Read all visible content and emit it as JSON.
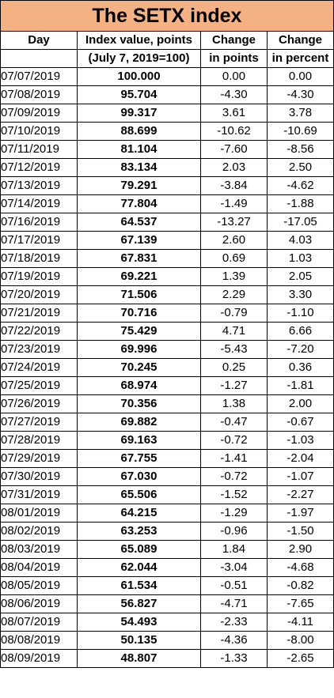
{
  "title": "The SETX index",
  "headers": {
    "day": "Day",
    "value_line1": "Index value, points",
    "value_line2": "(July 7, 2019=100)",
    "points_line1": "Change",
    "points_line2": "in points",
    "percent_line1": "Change",
    "percent_line2": "in percent"
  },
  "rows": [
    {
      "day": "07/07/2019",
      "value": "100.000",
      "change_points": "0.00",
      "change_percent": "0.00"
    },
    {
      "day": "07/08/2019",
      "value": "95.704",
      "change_points": "-4.30",
      "change_percent": "-4.30"
    },
    {
      "day": "07/09/2019",
      "value": "99.317",
      "change_points": "3.61",
      "change_percent": "3.78"
    },
    {
      "day": "07/10/2019",
      "value": "88.699",
      "change_points": "-10.62",
      "change_percent": "-10.69"
    },
    {
      "day": "07/11/2019",
      "value": "81.104",
      "change_points": "-7.60",
      "change_percent": "-8.56"
    },
    {
      "day": "07/12/2019",
      "value": "83.134",
      "change_points": "2.03",
      "change_percent": "2.50"
    },
    {
      "day": "07/13/2019",
      "value": "79.291",
      "change_points": "-3.84",
      "change_percent": "-4.62"
    },
    {
      "day": "07/14/2019",
      "value": "77.804",
      "change_points": "-1.49",
      "change_percent": "-1.88"
    },
    {
      "day": "07/16/2019",
      "value": "64.537",
      "change_points": "-13.27",
      "change_percent": "-17.05"
    },
    {
      "day": "07/17/2019",
      "value": "67.139",
      "change_points": "2.60",
      "change_percent": "4.03"
    },
    {
      "day": "07/18/2019",
      "value": "67.831",
      "change_points": "0.69",
      "change_percent": "1.03"
    },
    {
      "day": "07/19/2019",
      "value": "69.221",
      "change_points": "1.39",
      "change_percent": "2.05"
    },
    {
      "day": "07/20/2019",
      "value": "71.506",
      "change_points": "2.29",
      "change_percent": "3.30"
    },
    {
      "day": "07/21/2019",
      "value": "70.716",
      "change_points": "-0.79",
      "change_percent": "-1.10"
    },
    {
      "day": "07/22/2019",
      "value": "75.429",
      "change_points": "4.71",
      "change_percent": "6.66"
    },
    {
      "day": "07/23/2019",
      "value": "69.996",
      "change_points": "-5.43",
      "change_percent": "-7.20"
    },
    {
      "day": "07/24/2019",
      "value": "70.245",
      "change_points": "0.25",
      "change_percent": "0.36"
    },
    {
      "day": "07/25/2019",
      "value": "68.974",
      "change_points": "-1.27",
      "change_percent": "-1.81"
    },
    {
      "day": "07/26/2019",
      "value": "70.356",
      "change_points": "1.38",
      "change_percent": "2.00"
    },
    {
      "day": "07/27/2019",
      "value": "69.882",
      "change_points": "-0.47",
      "change_percent": "-0.67"
    },
    {
      "day": "07/28/2019",
      "value": "69.163",
      "change_points": "-0.72",
      "change_percent": "-1.03"
    },
    {
      "day": "07/29/2019",
      "value": "67.755",
      "change_points": "-1.41",
      "change_percent": "-2.04"
    },
    {
      "day": "07/30/2019",
      "value": "67.030",
      "change_points": "-0.72",
      "change_percent": "-1.07"
    },
    {
      "day": "07/31/2019",
      "value": "65.506",
      "change_points": "-1.52",
      "change_percent": "-2.27"
    },
    {
      "day": "08/01/2019",
      "value": "64.215",
      "change_points": "-1.29",
      "change_percent": "-1.97"
    },
    {
      "day": "08/02/2019",
      "value": "63.253",
      "change_points": "-0.96",
      "change_percent": "-1.50"
    },
    {
      "day": "08/03/2019",
      "value": "65.089",
      "change_points": "1.84",
      "change_percent": "2.90"
    },
    {
      "day": "08/04/2019",
      "value": "62.044",
      "change_points": "-3.04",
      "change_percent": "-4.68"
    },
    {
      "day": "08/05/2019",
      "value": "61.534",
      "change_points": "-0.51",
      "change_percent": "-0.82"
    },
    {
      "day": "08/06/2019",
      "value": "56.827",
      "change_points": "-4.71",
      "change_percent": "-7.65"
    },
    {
      "day": "08/07/2019",
      "value": "54.493",
      "change_points": "-2.33",
      "change_percent": "-4.11"
    },
    {
      "day": "08/08/2019",
      "value": "50.135",
      "change_points": "-4.36",
      "change_percent": "-8.00"
    },
    {
      "day": "08/09/2019",
      "value": "48.807",
      "change_points": "-1.33",
      "change_percent": "-2.65"
    }
  ],
  "colors": {
    "title_background": "#f4b183",
    "grid_lines": "#000000",
    "text": "#000000"
  }
}
